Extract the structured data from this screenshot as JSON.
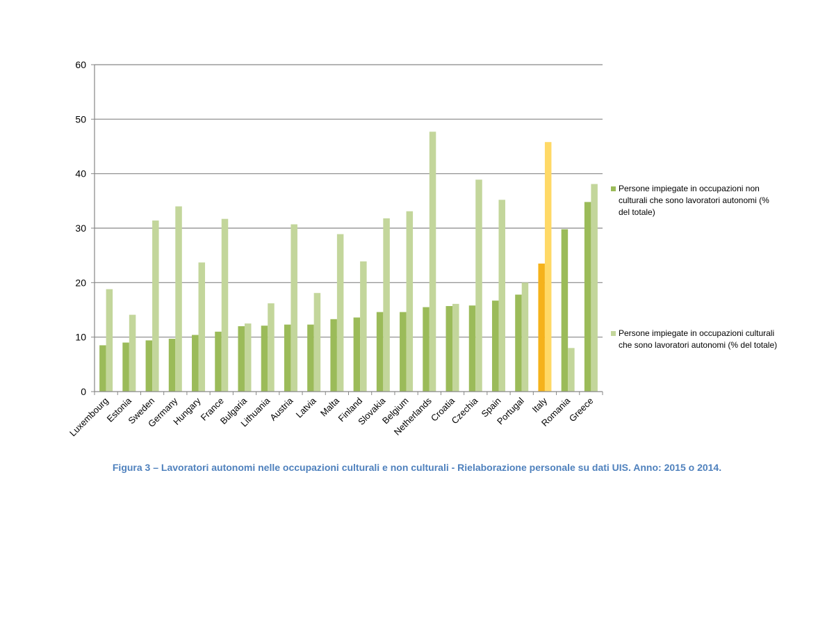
{
  "chart_data": {
    "type": "bar",
    "categories": [
      "Luxembourg",
      "Estonia",
      "Sweden",
      "Germany",
      "Hungary",
      "France",
      "Bulgaria",
      "Lithuania",
      "Austria",
      "Latvia",
      "Malta",
      "Finland",
      "Slovakia",
      "Belgium",
      "Netherlands",
      "Croatia",
      "Czechia",
      "Spain",
      "Portugal",
      "Italy",
      "Romania",
      "Greece"
    ],
    "series": [
      {
        "name": "Persone impiegate in occupazioni non culturali che sono lavoratori autonomi (% del totale)",
        "legend_lines": [
          "Persone impiegate in occupazioni non",
          "culturali che sono lavoratori autonomi (%",
          "del totale)"
        ],
        "color": "#9bbb59",
        "values": [
          8.5,
          9.0,
          9.4,
          9.7,
          10.4,
          11.0,
          12.0,
          12.1,
          12.3,
          12.3,
          13.3,
          13.6,
          14.6,
          14.6,
          15.5,
          15.7,
          15.8,
          16.7,
          17.8,
          23.5,
          29.8,
          34.8
        ]
      },
      {
        "name": "Persone impiegate in occupazioni culturali che sono lavoratori autonomi (% del totale)",
        "legend_lines": [
          "Persone impiegate in occupazioni culturali",
          "che sono lavoratori autonomi (% del totale)"
        ],
        "color": "#c3d69b",
        "values": [
          18.8,
          14.1,
          31.4,
          34.0,
          23.7,
          31.7,
          12.5,
          16.2,
          30.7,
          18.1,
          28.9,
          23.9,
          31.8,
          33.1,
          47.7,
          16.1,
          38.9,
          35.2,
          20.0,
          45.8,
          8.0,
          38.1
        ]
      }
    ],
    "highlight": {
      "category": "Italy",
      "colors": [
        "#f5b21b",
        "#ffd966"
      ]
    },
    "ylim": [
      0,
      60
    ],
    "yticks": [
      0,
      10,
      20,
      30,
      40,
      50,
      60
    ],
    "grid": true,
    "legend_position": "right",
    "gridline_color": "#868686",
    "title": "",
    "xlabel": "",
    "ylabel": ""
  },
  "caption": "Figura 3 – Lavoratori autonomi nelle occupazioni culturali e non culturali - Rielaborazione personale su dati UIS. Anno: 2015 o 2014."
}
